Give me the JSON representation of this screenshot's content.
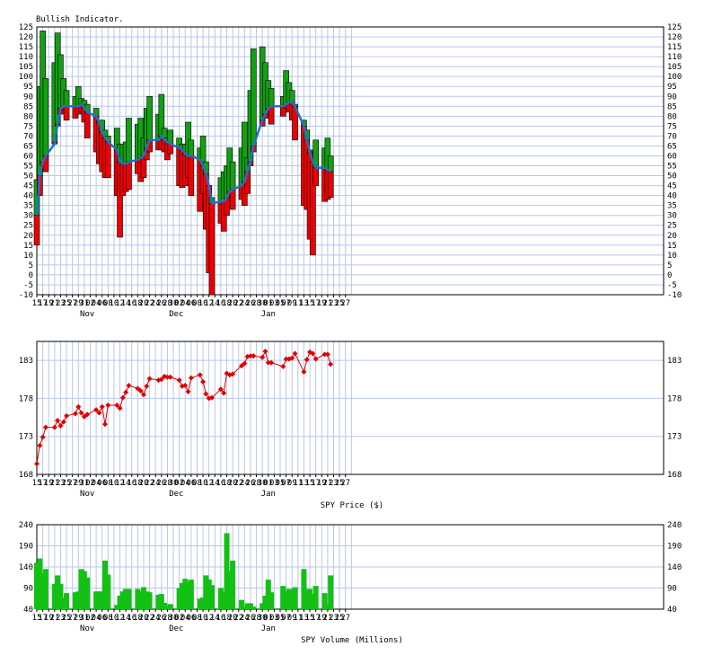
{
  "chart_data": [
    {
      "type": "bar",
      "title": "Bullish Indicator.",
      "ylim": [
        -10,
        125
      ],
      "yticks": [
        -10,
        -5,
        0,
        5,
        10,
        15,
        20,
        25,
        30,
        35,
        40,
        45,
        50,
        55,
        60,
        65,
        70,
        75,
        80,
        85,
        90,
        95,
        100,
        105,
        110,
        115,
        120,
        125
      ],
      "x_tick_labels": [
        "15",
        "17",
        "19",
        "21",
        "23",
        "25",
        "27",
        "29",
        "31",
        "02",
        "04",
        "06",
        "08",
        "10",
        "12",
        "14",
        "16",
        "18",
        "20",
        "22",
        "24",
        "26",
        "28",
        "30",
        "02",
        "04",
        "06",
        "08",
        "10",
        "12",
        "14",
        "16",
        "18",
        "20",
        "22",
        "24",
        "26",
        "28",
        "30",
        "01",
        "03",
        "05",
        "07",
        "09",
        "11",
        "13",
        "15",
        "17",
        "19",
        "21",
        "23",
        "25",
        "27"
      ],
      "month_labels": [
        {
          "label": "Nov",
          "at": "Nov 01"
        },
        {
          "label": "Dec",
          "at": "Dec 01"
        },
        {
          "label": "Jan",
          "at": "Jan 01"
        }
      ],
      "bars_note": "each bar: index = calendar day from Oct 15; g = top of green bar, r = bottom of red bar, m = moving average",
      "bars": [
        {
          "d": 0,
          "g": 48,
          "r": 15,
          "m": 30
        },
        {
          "d": 1,
          "g": 95,
          "r": 40,
          "m": 50
        },
        {
          "d": 2,
          "g": 123,
          "r": 55,
          "m": 57
        },
        {
          "d": 3,
          "g": 99,
          "r": 52,
          "m": 60
        },
        {
          "d": 6,
          "g": 107,
          "r": 67,
          "m": 66
        },
        {
          "d": 7,
          "g": 122,
          "r": 75,
          "m": 76
        },
        {
          "d": 8,
          "g": 111,
          "r": 81,
          "m": 84
        },
        {
          "d": 9,
          "g": 99,
          "r": 83,
          "m": 85
        },
        {
          "d": 10,
          "g": 93,
          "r": 78,
          "m": 85
        },
        {
          "d": 13,
          "g": 90,
          "r": 79,
          "m": 85
        },
        {
          "d": 14,
          "g": 95,
          "r": 81,
          "m": 85
        },
        {
          "d": 15,
          "g": 89,
          "r": 82,
          "m": 86
        },
        {
          "d": 16,
          "g": 88,
          "r": 77,
          "m": 84
        },
        {
          "d": 17,
          "g": 86,
          "r": 69,
          "m": 82
        },
        {
          "d": 20,
          "g": 84,
          "r": 62,
          "m": 80
        },
        {
          "d": 21,
          "g": 78,
          "r": 56,
          "m": 77
        },
        {
          "d": 22,
          "g": 78,
          "r": 52,
          "m": 72
        },
        {
          "d": 23,
          "g": 73,
          "r": 49,
          "m": 69
        },
        {
          "d": 24,
          "g": 70,
          "r": 49,
          "m": 67
        },
        {
          "d": 27,
          "g": 74,
          "r": 40,
          "m": 63
        },
        {
          "d": 28,
          "g": 66,
          "r": 19,
          "m": 57
        },
        {
          "d": 29,
          "g": 66,
          "r": 40,
          "m": 56
        },
        {
          "d": 30,
          "g": 67,
          "r": 42,
          "m": 56
        },
        {
          "d": 31,
          "g": 79,
          "r": 43,
          "m": 57
        },
        {
          "d": 34,
          "g": 76,
          "r": 51,
          "m": 58
        },
        {
          "d": 35,
          "g": 79,
          "r": 47,
          "m": 59
        },
        {
          "d": 36,
          "g": 69,
          "r": 49,
          "m": 60
        },
        {
          "d": 37,
          "g": 84,
          "r": 58,
          "m": 64
        },
        {
          "d": 38,
          "g": 90,
          "r": 62,
          "m": 68
        },
        {
          "d": 41,
          "g": 81,
          "r": 63,
          "m": 68
        },
        {
          "d": 42,
          "g": 91,
          "r": 63,
          "m": 70
        },
        {
          "d": 43,
          "g": 74,
          "r": 62,
          "m": 68
        },
        {
          "d": 44,
          "g": 69,
          "r": 58,
          "m": 67
        },
        {
          "d": 45,
          "g": 73,
          "r": 61,
          "m": 66
        },
        {
          "d": 48,
          "g": 69,
          "r": 45,
          "m": 64
        },
        {
          "d": 49,
          "g": 66,
          "r": 44,
          "m": 63
        },
        {
          "d": 50,
          "g": 66,
          "r": 45,
          "m": 61
        },
        {
          "d": 51,
          "g": 77,
          "r": 49,
          "m": 60
        },
        {
          "d": 52,
          "g": 68,
          "r": 40,
          "m": 60
        },
        {
          "d": 55,
          "g": 64,
          "r": 32,
          "m": 58
        },
        {
          "d": 56,
          "g": 70,
          "r": 41,
          "m": 55
        },
        {
          "d": 57,
          "g": 57,
          "r": 23,
          "m": 51
        },
        {
          "d": 58,
          "g": 44,
          "r": 1,
          "m": 45
        },
        {
          "d": 59,
          "g": 39,
          "r": -10,
          "m": 36
        },
        {
          "d": 62,
          "g": 49,
          "r": 26,
          "m": 37
        },
        {
          "d": 63,
          "g": 52,
          "r": 22,
          "m": 37
        },
        {
          "d": 64,
          "g": 55,
          "r": 30,
          "m": 39
        },
        {
          "d": 65,
          "g": 64,
          "r": 40,
          "m": 42
        },
        {
          "d": 66,
          "g": 57,
          "r": 33,
          "m": 43
        },
        {
          "d": 69,
          "g": 64,
          "r": 38,
          "m": 45
        },
        {
          "d": 70,
          "g": 77,
          "r": 35,
          "m": 47
        },
        {
          "d": 71,
          "g": 59,
          "r": 41,
          "m": 52
        },
        {
          "d": 72,
          "g": 93,
          "r": 55,
          "m": 57
        },
        {
          "d": 73,
          "g": 114,
          "r": 62,
          "m": 65
        },
        {
          "d": 76,
          "g": 115,
          "r": 75,
          "m": 78
        },
        {
          "d": 77,
          "g": 107,
          "r": 79,
          "m": 81
        },
        {
          "d": 78,
          "g": 98,
          "r": 83,
          "m": 84
        },
        {
          "d": 79,
          "g": 94,
          "r": 76,
          "m": 85
        },
        {
          "d": 83,
          "g": 90,
          "r": 80,
          "m": 85
        },
        {
          "d": 84,
          "g": 103,
          "r": 84,
          "m": 86
        },
        {
          "d": 85,
          "g": 97,
          "r": 82,
          "m": 87
        },
        {
          "d": 86,
          "g": 93,
          "r": 78,
          "m": 87
        },
        {
          "d": 87,
          "g": 86,
          "r": 68,
          "m": 85
        },
        {
          "d": 90,
          "g": 78,
          "r": 35,
          "m": 75
        },
        {
          "d": 91,
          "g": 73,
          "r": 33,
          "m": 68
        },
        {
          "d": 92,
          "g": 63,
          "r": 18,
          "m": 62
        },
        {
          "d": 93,
          "g": 56,
          "r": 10,
          "m": 57
        },
        {
          "d": 94,
          "g": 68,
          "r": 45,
          "m": 54
        },
        {
          "d": 97,
          "g": 64,
          "r": 37,
          "m": 54
        },
        {
          "d": 98,
          "g": 69,
          "r": 38,
          "m": 53
        },
        {
          "d": 99,
          "g": 60,
          "r": 39,
          "m": 52
        }
      ]
    },
    {
      "type": "line",
      "xlabel": "SPY Price ($)",
      "ylim": [
        168,
        185.5
      ],
      "yticks": [
        168,
        173,
        178,
        183
      ],
      "points_note": "[day index from Oct 15, price]",
      "points": [
        [
          0,
          169.4
        ],
        [
          1,
          171.8
        ],
        [
          2,
          172.9
        ],
        [
          3,
          174.2
        ],
        [
          6,
          174.2
        ],
        [
          7,
          175.1
        ],
        [
          8,
          174.4
        ],
        [
          9,
          174.9
        ],
        [
          10,
          175.7
        ],
        [
          13,
          176.0
        ],
        [
          14,
          176.9
        ],
        [
          15,
          176.1
        ],
        [
          16,
          175.6
        ],
        [
          17,
          175.9
        ],
        [
          20,
          176.5
        ],
        [
          21,
          176.1
        ],
        [
          22,
          176.9
        ],
        [
          23,
          174.6
        ],
        [
          24,
          177.1
        ],
        [
          27,
          177.1
        ],
        [
          28,
          176.7
        ],
        [
          29,
          178.1
        ],
        [
          30,
          178.8
        ],
        [
          31,
          179.7
        ],
        [
          34,
          179.3
        ],
        [
          35,
          179.0
        ],
        [
          36,
          178.5
        ],
        [
          37,
          179.6
        ],
        [
          38,
          180.6
        ],
        [
          41,
          180.4
        ],
        [
          42,
          180.5
        ],
        [
          43,
          180.9
        ],
        [
          44,
          180.8
        ],
        [
          45,
          180.8
        ],
        [
          48,
          180.4
        ],
        [
          49,
          179.6
        ],
        [
          50,
          179.7
        ],
        [
          51,
          178.9
        ],
        [
          52,
          180.7
        ],
        [
          55,
          181.1
        ],
        [
          56,
          180.2
        ],
        [
          57,
          178.6
        ],
        [
          58,
          178.0
        ],
        [
          59,
          178.1
        ],
        [
          62,
          179.2
        ],
        [
          63,
          178.7
        ],
        [
          64,
          181.3
        ],
        [
          65,
          181.1
        ],
        [
          66,
          181.2
        ],
        [
          69,
          182.3
        ],
        [
          70,
          182.6
        ],
        [
          71,
          183.5
        ],
        [
          72,
          183.6
        ],
        [
          73,
          183.6
        ],
        [
          76,
          183.4
        ],
        [
          77,
          184.2
        ],
        [
          78,
          182.7
        ],
        [
          79,
          182.7
        ],
        [
          83,
          182.2
        ],
        [
          84,
          183.2
        ],
        [
          85,
          183.2
        ],
        [
          86,
          183.3
        ],
        [
          87,
          183.9
        ],
        [
          90,
          181.5
        ],
        [
          91,
          183.1
        ],
        [
          92,
          184.1
        ],
        [
          93,
          183.9
        ],
        [
          94,
          183.2
        ],
        [
          97,
          183.8
        ],
        [
          98,
          183.8
        ],
        [
          99,
          182.5
        ]
      ]
    },
    {
      "type": "bar",
      "xlabel": "SPY Volume (Millions)",
      "ylim": [
        40,
        240
      ],
      "yticks": [
        40,
        90,
        140,
        190,
        240
      ],
      "bars_note": "[day index from Oct 15, volume]",
      "bars": [
        [
          0,
          150
        ],
        [
          1,
          160
        ],
        [
          2,
          125
        ],
        [
          3,
          135
        ],
        [
          6,
          100
        ],
        [
          7,
          120
        ],
        [
          8,
          100
        ],
        [
          9,
          67
        ],
        [
          10,
          78
        ],
        [
          13,
          80
        ],
        [
          14,
          82
        ],
        [
          15,
          135
        ],
        [
          16,
          130
        ],
        [
          17,
          115
        ],
        [
          20,
          82
        ],
        [
          21,
          82
        ],
        [
          22,
          82
        ],
        [
          23,
          155
        ],
        [
          24,
          122
        ],
        [
          27,
          50
        ],
        [
          28,
          72
        ],
        [
          29,
          82
        ],
        [
          30,
          88
        ],
        [
          31,
          88
        ],
        [
          34,
          88
        ],
        [
          35,
          82
        ],
        [
          36,
          92
        ],
        [
          37,
          82
        ],
        [
          38,
          80
        ],
        [
          41,
          74
        ],
        [
          42,
          76
        ],
        [
          43,
          55
        ],
        [
          44,
          48
        ],
        [
          45,
          52
        ],
        [
          48,
          90
        ],
        [
          49,
          102
        ],
        [
          50,
          112
        ],
        [
          51,
          105
        ],
        [
          52,
          110
        ],
        [
          55,
          65
        ],
        [
          56,
          68
        ],
        [
          57,
          120
        ],
        [
          58,
          110
        ],
        [
          59,
          97
        ],
        [
          62,
          90
        ],
        [
          63,
          82
        ],
        [
          64,
          220
        ],
        [
          65,
          130
        ],
        [
          66,
          155
        ],
        [
          69,
          62
        ],
        [
          70,
          45
        ],
        [
          71,
          54
        ],
        [
          72,
          54
        ],
        [
          73,
          46
        ],
        [
          76,
          54
        ],
        [
          77,
          72
        ],
        [
          78,
          110
        ],
        [
          79,
          80
        ],
        [
          83,
          95
        ],
        [
          84,
          82
        ],
        [
          85,
          88
        ],
        [
          86,
          87
        ],
        [
          87,
          92
        ],
        [
          90,
          135
        ],
        [
          91,
          88
        ],
        [
          92,
          88
        ],
        [
          93,
          76
        ],
        [
          94,
          95
        ],
        [
          97,
          78
        ],
        [
          98,
          52
        ],
        [
          99,
          120
        ]
      ]
    }
  ]
}
